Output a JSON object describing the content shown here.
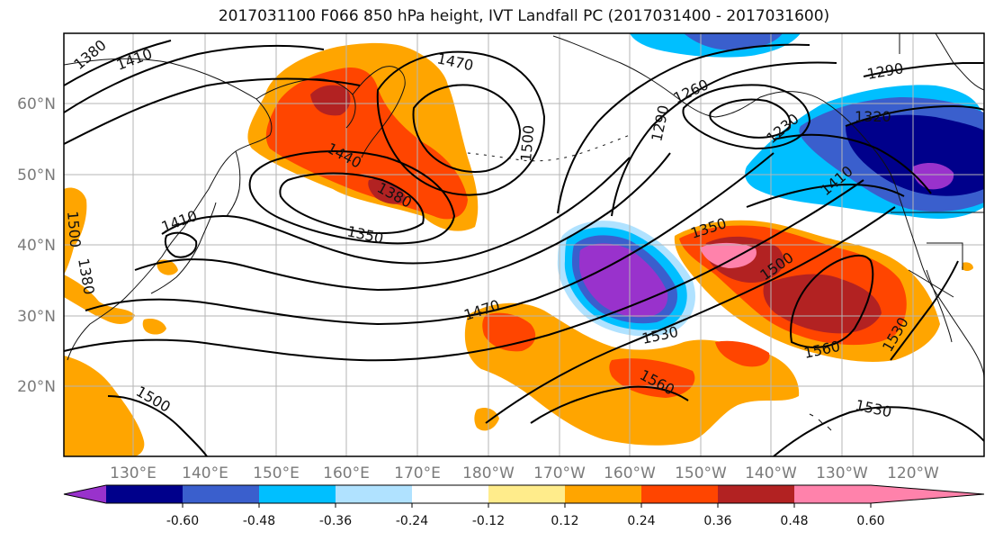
{
  "title": "2017031100 F066 850 hPa height, IVT Landfall PC (2017031400 - 2017031600)",
  "lat_labels": [
    "60°N",
    "50°N",
    "40°N",
    "30°N",
    "20°N"
  ],
  "lon_labels": [
    "130°E",
    "140°E",
    "150°E",
    "160°E",
    "170°E",
    "180°W",
    "170°W",
    "160°W",
    "150°W",
    "140°W",
    "130°W",
    "120°W"
  ],
  "colorbar": {
    "colors": [
      "#9932cc",
      "#00008b",
      "#3a5fcd",
      "#00bfff",
      "#b0e2ff",
      "#ffffff",
      "#ffec8b",
      "#ffa500",
      "#ff4500",
      "#b22222",
      "#ff82ab"
    ],
    "labels": [
      "-0.60",
      "-0.48",
      "-0.36",
      "-0.24",
      "-0.12",
      "0.12",
      "0.24",
      "0.36",
      "0.48",
      "0.60"
    ]
  },
  "contour_labels": [
    "1380",
    "1410",
    "1470",
    "1500",
    "1380",
    "1440",
    "1380",
    "1350",
    "1410",
    "1500",
    "1260",
    "1290",
    "1230",
    "1320",
    "1290",
    "1410",
    "1350",
    "1500",
    "1470",
    "1530",
    "1560",
    "1560",
    "1530",
    "1500",
    "1530"
  ]
}
